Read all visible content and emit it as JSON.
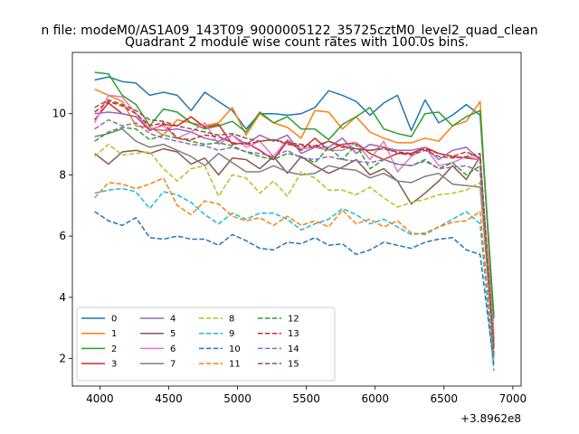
{
  "chart_data": {
    "type": "line",
    "suptitle": "n file: modeM0/AS1A09_143T09_9000005122_35725cztM0_level2_quad_clean",
    "title": "Quadrant 2 module wise count rates with 100.0s bins.",
    "xlabel": "",
    "ylabel": "",
    "x_offset_label": "+3.8962e8",
    "xlim": [
      3800,
      7060
    ],
    "ylim": [
      1.1,
      12.0
    ],
    "xticks": [
      4000,
      4500,
      5000,
      5500,
      6000,
      6500,
      7000
    ],
    "yticks": [
      2,
      4,
      6,
      8,
      10
    ],
    "x": [
      3962,
      4062,
      4162,
      4262,
      4362,
      4462,
      4562,
      4662,
      4762,
      4862,
      4962,
      5062,
      5162,
      5262,
      5362,
      5462,
      5562,
      5662,
      5762,
      5862,
      5962,
      6062,
      6162,
      6262,
      6362,
      6462,
      6562,
      6662,
      6762,
      6862
    ],
    "legend": {
      "location": "lower-left",
      "columns": 4
    },
    "series": [
      {
        "name": "0",
        "color": "#1f77b4",
        "style": "solid",
        "values": [
          11.1,
          11.2,
          11.05,
          11.0,
          10.6,
          10.7,
          10.6,
          10.1,
          10.7,
          10.4,
          10.1,
          9.5,
          10.0,
          10.0,
          9.95,
          10.0,
          10.2,
          10.75,
          10.6,
          10.4,
          9.95,
          10.35,
          10.6,
          9.45,
          10.45,
          9.7,
          9.95,
          10.3,
          9.95,
          3.4
        ]
      },
      {
        "name": "1",
        "color": "#ff7f0e",
        "style": "solid",
        "values": [
          10.8,
          10.6,
          10.4,
          9.6,
          9.55,
          9.3,
          9.8,
          9.7,
          9.6,
          9.7,
          10.2,
          9.3,
          10.0,
          9.7,
          9.55,
          9.2,
          10.1,
          10.05,
          9.5,
          9.9,
          9.4,
          9.2,
          9.05,
          9.05,
          9.2,
          9.1,
          9.6,
          9.75,
          10.4,
          2.8
        ]
      },
      {
        "name": "2",
        "color": "#2ca02c",
        "style": "solid",
        "values": [
          11.35,
          11.3,
          10.6,
          10.3,
          9.6,
          10.15,
          10.05,
          9.7,
          9.5,
          9.6,
          9.75,
          9.4,
          10.05,
          9.7,
          9.9,
          9.5,
          9.5,
          9.15,
          9.65,
          9.9,
          10.2,
          9.5,
          9.35,
          9.25,
          10.0,
          10.05,
          9.6,
          9.9,
          10.1,
          3.3
        ]
      },
      {
        "name": "3",
        "color": "#d62728",
        "style": "solid",
        "values": [
          9.8,
          10.35,
          10.0,
          9.9,
          9.45,
          9.65,
          9.6,
          9.9,
          9.55,
          9.65,
          9.0,
          9.05,
          8.8,
          8.5,
          9.1,
          8.8,
          9.2,
          8.8,
          9.0,
          9.05,
          8.7,
          8.5,
          8.7,
          8.7,
          8.9,
          8.7,
          8.6,
          8.55,
          8.5,
          2.5
        ]
      },
      {
        "name": "4",
        "color": "#9467bd",
        "style": "solid",
        "values": [
          10.0,
          10.05,
          10.0,
          9.9,
          9.5,
          9.45,
          9.5,
          9.4,
          9.2,
          9.1,
          9.3,
          9.0,
          9.3,
          9.1,
          9.3,
          8.7,
          8.9,
          8.9,
          9.2,
          8.7,
          9.0,
          8.9,
          8.8,
          8.8,
          8.9,
          8.5,
          8.8,
          8.9,
          8.5,
          2.6
        ]
      },
      {
        "name": "5",
        "color": "#8c564b",
        "style": "solid",
        "values": [
          8.7,
          8.35,
          8.75,
          8.8,
          8.7,
          8.85,
          8.75,
          8.35,
          8.55,
          8.0,
          8.55,
          8.5,
          8.2,
          8.6,
          8.05,
          8.6,
          8.3,
          8.05,
          8.25,
          8.5,
          8.0,
          8.2,
          7.8,
          7.05,
          7.4,
          7.8,
          8.3,
          7.85,
          8.6,
          2.4
        ]
      },
      {
        "name": "6",
        "color": "#e377c2",
        "style": "solid",
        "values": [
          9.7,
          10.6,
          10.55,
          10.0,
          9.5,
          9.6,
          9.2,
          9.4,
          9.7,
          9.0,
          9.3,
          8.9,
          9.1,
          8.6,
          9.15,
          8.85,
          8.9,
          8.8,
          8.8,
          9.05,
          8.5,
          9.1,
          8.1,
          8.6,
          8.9,
          8.3,
          8.4,
          8.6,
          8.5,
          2.7
        ]
      },
      {
        "name": "7",
        "color": "#7f7f7f",
        "style": "solid",
        "values": [
          9.25,
          9.35,
          9.5,
          9.1,
          8.9,
          9.0,
          8.8,
          8.6,
          8.3,
          8.7,
          8.4,
          8.1,
          8.1,
          8.3,
          8.1,
          8.0,
          8.05,
          8.3,
          8.2,
          8.15,
          7.9,
          8.05,
          7.8,
          7.75,
          7.95,
          8.05,
          7.7,
          7.65,
          7.6,
          2.5
        ]
      },
      {
        "name": "8",
        "color": "#bcbd22",
        "style": "dashed",
        "values": [
          8.6,
          9.0,
          8.65,
          8.7,
          8.75,
          8.2,
          7.8,
          8.2,
          8.3,
          7.3,
          8.0,
          7.9,
          7.4,
          7.8,
          7.3,
          8.1,
          7.9,
          7.5,
          7.5,
          7.35,
          7.6,
          7.25,
          6.95,
          7.1,
          7.2,
          7.35,
          7.4,
          7.5,
          7.75,
          2.2
        ]
      },
      {
        "name": "9",
        "color": "#17becf",
        "style": "dashed",
        "values": [
          7.4,
          7.5,
          7.55,
          7.45,
          6.9,
          7.45,
          7.35,
          7.1,
          6.7,
          6.4,
          6.75,
          6.55,
          6.75,
          6.75,
          6.55,
          6.2,
          6.4,
          6.55,
          6.9,
          6.7,
          6.4,
          6.55,
          6.3,
          6.05,
          6.1,
          6.3,
          6.55,
          6.8,
          6.4,
          1.6
        ]
      },
      {
        "name": "10",
        "color": "#1f77b4",
        "style": "dashed",
        "values": [
          6.8,
          6.5,
          6.35,
          6.6,
          5.95,
          5.9,
          6.0,
          5.9,
          5.9,
          5.7,
          6.05,
          5.85,
          5.6,
          5.55,
          5.8,
          5.75,
          5.95,
          5.7,
          5.75,
          5.4,
          5.55,
          5.8,
          5.7,
          5.6,
          5.8,
          5.9,
          5.95,
          5.55,
          5.4,
          1.8
        ]
      },
      {
        "name": "11",
        "color": "#ff7f0e",
        "style": "dashed",
        "values": [
          7.25,
          7.75,
          7.7,
          7.55,
          7.7,
          7.9,
          7.0,
          6.7,
          7.15,
          7.05,
          6.65,
          6.5,
          6.6,
          6.35,
          6.65,
          6.35,
          6.5,
          6.3,
          6.85,
          6.4,
          6.55,
          6.3,
          6.5,
          6.1,
          6.05,
          6.3,
          6.45,
          6.5,
          6.8,
          2.0
        ]
      },
      {
        "name": "12",
        "color": "#2ca02c",
        "style": "dashed",
        "values": [
          9.1,
          9.4,
          9.55,
          9.5,
          9.15,
          9.3,
          9.2,
          9.1,
          9.0,
          9.05,
          8.95,
          8.75,
          8.6,
          8.5,
          8.7,
          8.6,
          8.4,
          8.9,
          8.5,
          9.0,
          8.2,
          8.5,
          8.35,
          8.3,
          8.5,
          8.2,
          8.4,
          8.0,
          8.3,
          2.1
        ]
      },
      {
        "name": "13",
        "color": "#d62728",
        "style": "dashed",
        "values": [
          10.05,
          10.4,
          10.25,
          10.0,
          9.6,
          9.7,
          9.2,
          9.15,
          9.3,
          9.25,
          9.05,
          9.0,
          9.1,
          9.15,
          9.0,
          8.95,
          8.9,
          9.1,
          8.95,
          8.85,
          8.8,
          8.85,
          8.75,
          8.7,
          8.85,
          8.7,
          8.6,
          8.75,
          8.55,
          2.2
        ]
      },
      {
        "name": "14",
        "color": "#9467bd",
        "style": "dashed",
        "values": [
          9.5,
          9.8,
          9.6,
          9.7,
          9.35,
          9.2,
          9.1,
          9.0,
          8.95,
          8.8,
          8.9,
          8.75,
          8.7,
          8.6,
          8.8,
          8.55,
          8.5,
          8.6,
          8.5,
          8.45,
          8.4,
          8.5,
          8.35,
          8.3,
          8.45,
          8.2,
          8.25,
          8.3,
          8.1,
          2.0
        ]
      },
      {
        "name": "15",
        "color": "#8c564b",
        "style": "dashed",
        "values": [
          10.2,
          10.45,
          10.3,
          10.1,
          9.8,
          9.75,
          9.6,
          9.5,
          9.4,
          9.3,
          9.35,
          9.2,
          9.1,
          9.15,
          9.05,
          9.0,
          8.95,
          9.1,
          8.9,
          8.85,
          8.8,
          8.9,
          8.7,
          8.65,
          8.8,
          8.6,
          8.55,
          8.6,
          8.7,
          2.3
        ]
      }
    ]
  }
}
